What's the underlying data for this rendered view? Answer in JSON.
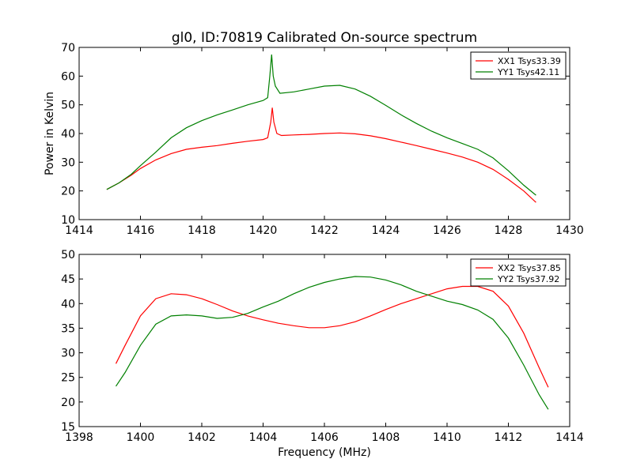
{
  "chart_data": [
    {
      "type": "line",
      "title": "gl0, ID:70819 Calibrated On-source spectrum",
      "xlabel": "",
      "ylabel": "Power in Kelvin",
      "xlim": [
        1414,
        1430
      ],
      "ylim": [
        10,
        70
      ],
      "xticks": [
        1414,
        1416,
        1418,
        1420,
        1422,
        1424,
        1426,
        1428,
        1430
      ],
      "yticks": [
        10,
        20,
        30,
        40,
        50,
        60,
        70
      ],
      "legend_position": "top-right",
      "grid": false,
      "series": [
        {
          "name": "XX1 Tsys33.39",
          "color": "#ff0000",
          "points": [
            [
              1414.9,
              20.5
            ],
            [
              1415.3,
              22.8
            ],
            [
              1415.7,
              25.5
            ],
            [
              1416.0,
              27.8
            ],
            [
              1416.5,
              30.8
            ],
            [
              1417.0,
              33.0
            ],
            [
              1417.5,
              34.5
            ],
            [
              1418.0,
              35.2
            ],
            [
              1418.5,
              35.8
            ],
            [
              1419.0,
              36.6
            ],
            [
              1419.5,
              37.3
            ],
            [
              1420.0,
              37.9
            ],
            [
              1420.15,
              38.5
            ],
            [
              1420.25,
              44.0
            ],
            [
              1420.3,
              49.0
            ],
            [
              1420.35,
              44.0
            ],
            [
              1420.45,
              40.0
            ],
            [
              1420.6,
              39.3
            ],
            [
              1421.0,
              39.5
            ],
            [
              1421.5,
              39.7
            ],
            [
              1422.0,
              40.0
            ],
            [
              1422.5,
              40.2
            ],
            [
              1423.0,
              39.9
            ],
            [
              1423.5,
              39.2
            ],
            [
              1424.0,
              38.2
            ],
            [
              1424.5,
              37.0
            ],
            [
              1425.0,
              35.8
            ],
            [
              1425.5,
              34.5
            ],
            [
              1426.0,
              33.2
            ],
            [
              1426.5,
              31.8
            ],
            [
              1427.0,
              30.0
            ],
            [
              1427.5,
              27.5
            ],
            [
              1428.0,
              24.0
            ],
            [
              1428.5,
              20.0
            ],
            [
              1428.9,
              16.0
            ]
          ]
        },
        {
          "name": "YY1 Tsys42.11",
          "color": "#008000",
          "points": [
            [
              1414.9,
              20.5
            ],
            [
              1415.3,
              22.8
            ],
            [
              1415.7,
              25.8
            ],
            [
              1416.0,
              28.8
            ],
            [
              1416.5,
              33.5
            ],
            [
              1417.0,
              38.5
            ],
            [
              1417.5,
              42.0
            ],
            [
              1418.0,
              44.5
            ],
            [
              1418.5,
              46.5
            ],
            [
              1419.0,
              48.2
            ],
            [
              1419.5,
              50.0
            ],
            [
              1420.0,
              51.5
            ],
            [
              1420.15,
              52.5
            ],
            [
              1420.22,
              60.0
            ],
            [
              1420.28,
              67.5
            ],
            [
              1420.33,
              60.0
            ],
            [
              1420.4,
              56.5
            ],
            [
              1420.55,
              54.0
            ],
            [
              1421.0,
              54.5
            ],
            [
              1421.5,
              55.5
            ],
            [
              1422.0,
              56.5
            ],
            [
              1422.5,
              56.8
            ],
            [
              1423.0,
              55.5
            ],
            [
              1423.5,
              53.0
            ],
            [
              1424.0,
              49.8
            ],
            [
              1424.5,
              46.5
            ],
            [
              1425.0,
              43.5
            ],
            [
              1425.5,
              40.8
            ],
            [
              1426.0,
              38.5
            ],
            [
              1426.5,
              36.5
            ],
            [
              1427.0,
              34.5
            ],
            [
              1427.5,
              31.5
            ],
            [
              1428.0,
              27.0
            ],
            [
              1428.5,
              22.0
            ],
            [
              1428.9,
              18.5
            ]
          ]
        }
      ]
    },
    {
      "type": "line",
      "title": "",
      "xlabel": "Frequency (MHz)",
      "ylabel": "",
      "xlim": [
        1398,
        1414
      ],
      "ylim": [
        15,
        50
      ],
      "xticks": [
        1398,
        1400,
        1402,
        1404,
        1406,
        1408,
        1410,
        1412,
        1414
      ],
      "yticks": [
        15,
        20,
        25,
        30,
        35,
        40,
        45,
        50
      ],
      "legend_position": "top-right",
      "grid": false,
      "series": [
        {
          "name": "XX2 Tsys37.85",
          "color": "#ff0000",
          "points": [
            [
              1399.2,
              27.8
            ],
            [
              1399.5,
              31.5
            ],
            [
              1400.0,
              37.5
            ],
            [
              1400.5,
              41.0
            ],
            [
              1401.0,
              42.0
            ],
            [
              1401.5,
              41.8
            ],
            [
              1402.0,
              41.0
            ],
            [
              1402.5,
              39.8
            ],
            [
              1403.0,
              38.5
            ],
            [
              1403.5,
              37.5
            ],
            [
              1404.0,
              36.7
            ],
            [
              1404.5,
              36.0
            ],
            [
              1405.0,
              35.5
            ],
            [
              1405.5,
              35.1
            ],
            [
              1406.0,
              35.1
            ],
            [
              1406.5,
              35.5
            ],
            [
              1407.0,
              36.3
            ],
            [
              1407.5,
              37.5
            ],
            [
              1408.0,
              38.8
            ],
            [
              1408.5,
              40.0
            ],
            [
              1409.0,
              41.0
            ],
            [
              1409.5,
              42.0
            ],
            [
              1410.0,
              43.0
            ],
            [
              1410.5,
              43.5
            ],
            [
              1411.0,
              43.5
            ],
            [
              1411.5,
              42.5
            ],
            [
              1412.0,
              39.5
            ],
            [
              1412.5,
              34.0
            ],
            [
              1413.0,
              27.0
            ],
            [
              1413.3,
              23.0
            ]
          ]
        },
        {
          "name": "YY2 Tsys37.92",
          "color": "#008000",
          "points": [
            [
              1399.2,
              23.2
            ],
            [
              1399.5,
              26.0
            ],
            [
              1400.0,
              31.5
            ],
            [
              1400.5,
              35.8
            ],
            [
              1401.0,
              37.5
            ],
            [
              1401.5,
              37.7
            ],
            [
              1402.0,
              37.5
            ],
            [
              1402.5,
              37.0
            ],
            [
              1403.0,
              37.2
            ],
            [
              1403.5,
              38.0
            ],
            [
              1404.0,
              39.3
            ],
            [
              1404.5,
              40.5
            ],
            [
              1405.0,
              42.0
            ],
            [
              1405.5,
              43.3
            ],
            [
              1406.0,
              44.3
            ],
            [
              1406.5,
              45.0
            ],
            [
              1407.0,
              45.5
            ],
            [
              1407.5,
              45.4
            ],
            [
              1408.0,
              44.8
            ],
            [
              1408.5,
              43.8
            ],
            [
              1409.0,
              42.5
            ],
            [
              1409.5,
              41.5
            ],
            [
              1410.0,
              40.5
            ],
            [
              1410.5,
              39.8
            ],
            [
              1411.0,
              38.7
            ],
            [
              1411.5,
              36.8
            ],
            [
              1412.0,
              33.0
            ],
            [
              1412.5,
              27.5
            ],
            [
              1413.0,
              21.5
            ],
            [
              1413.3,
              18.5
            ]
          ]
        }
      ]
    }
  ]
}
